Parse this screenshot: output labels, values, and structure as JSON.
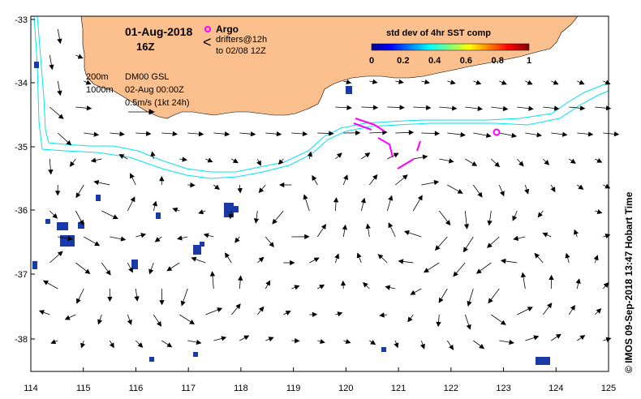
{
  "date_label": "01-Aug-2018",
  "time_label": "16Z",
  "legend": {
    "argo_label": "Argo",
    "drifters_label": "drifters@12h",
    "drifters_sub": "to 02/08 12Z",
    "argo_color": "#ff00ff",
    "drifter_color": "#ff00ff"
  },
  "contours": {
    "depth1": "200m",
    "depth2": "1000m",
    "model_label": "DM00 GSL",
    "model_time": "02-Aug 00:00Z",
    "scale_label": "0.5m/s (1kt 24h)",
    "color": "#00e5ee"
  },
  "colorbar": {
    "title": "std dev of 4hr SST comp",
    "ticks": [
      "0",
      "0.2",
      "0.4",
      "0.6",
      "0.8",
      "1"
    ]
  },
  "axes": {
    "x_ticks": [
      "114",
      "115",
      "116",
      "117",
      "118",
      "119",
      "120",
      "121",
      "122",
      "123",
      "124",
      "125"
    ],
    "y_ticks": [
      "-33",
      "-34",
      "-35",
      "-36",
      "-37",
      "-38"
    ],
    "x_range": [
      114,
      125
    ],
    "y_range": [
      -38.5,
      -32.9
    ]
  },
  "credit": "© IMOS 09-Sep-2018 13:47 Hobart Time",
  "colors": {
    "land": "#fbc08d",
    "arrows": "#000000",
    "sst_patches": "#1a3aa8"
  }
}
